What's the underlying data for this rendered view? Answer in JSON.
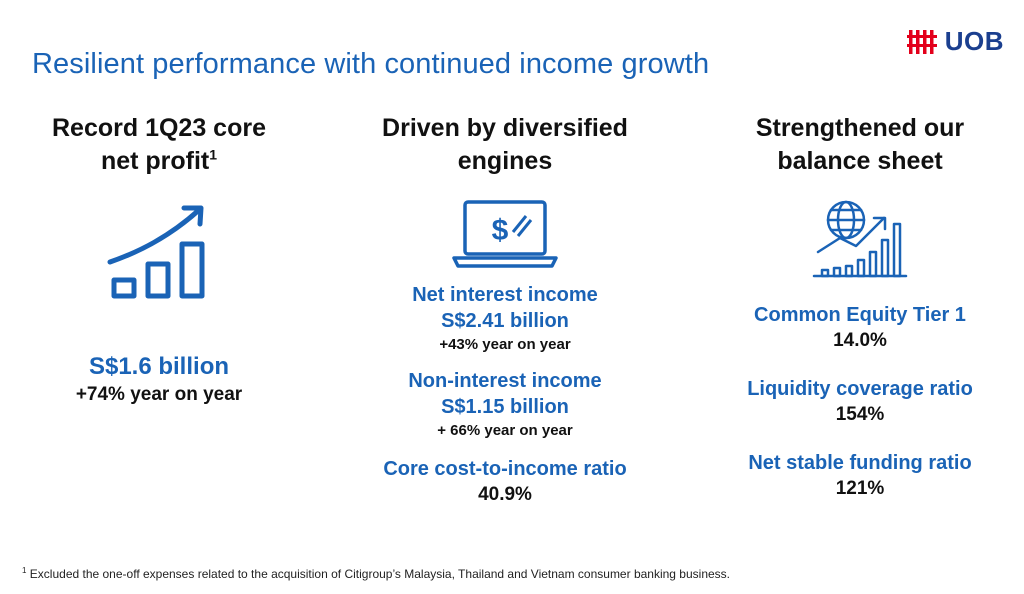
{
  "title": "Resilient performance with continued income growth",
  "logo": {
    "text": "UOB",
    "icon": "uob-logo-icon",
    "color": "#e3001b"
  },
  "colors": {
    "accent": "#1a63b6",
    "text": "#111111"
  },
  "left": {
    "heading_line1": "Record 1Q23 core",
    "heading_line2": "net profit",
    "footnote_mark": "1",
    "icon": "growth-chart-icon",
    "value": "S$1.6 billion",
    "change": "+74% year on year"
  },
  "middle": {
    "heading_line1": "Driven by diversified",
    "heading_line2": "engines",
    "icon": "laptop-dollar-icon",
    "metrics": [
      {
        "label": "Net interest income",
        "value": "S$2.41 billion",
        "change": "+43% year on year"
      },
      {
        "label": "Non-interest income",
        "value": "S$1.15  billion",
        "change": "+ 66% year on year"
      },
      {
        "label": "Core cost-to-income ratio",
        "value": "40.9%"
      }
    ]
  },
  "right": {
    "heading_line1": "Strengthened our",
    "heading_line2": "balance sheet",
    "icon": "globe-chart-icon",
    "metrics": [
      {
        "label": "Common Equity Tier 1",
        "value": "14.0%"
      },
      {
        "label": "Liquidity coverage ratio",
        "value": "154%"
      },
      {
        "label": "Net stable funding ratio",
        "value": "121%"
      }
    ]
  },
  "footnote": {
    "mark": "1",
    "text": "Excluded the one-off expenses related to the acquisition of Citigroup’s Malaysia, Thailand and Vietnam consumer banking business."
  }
}
